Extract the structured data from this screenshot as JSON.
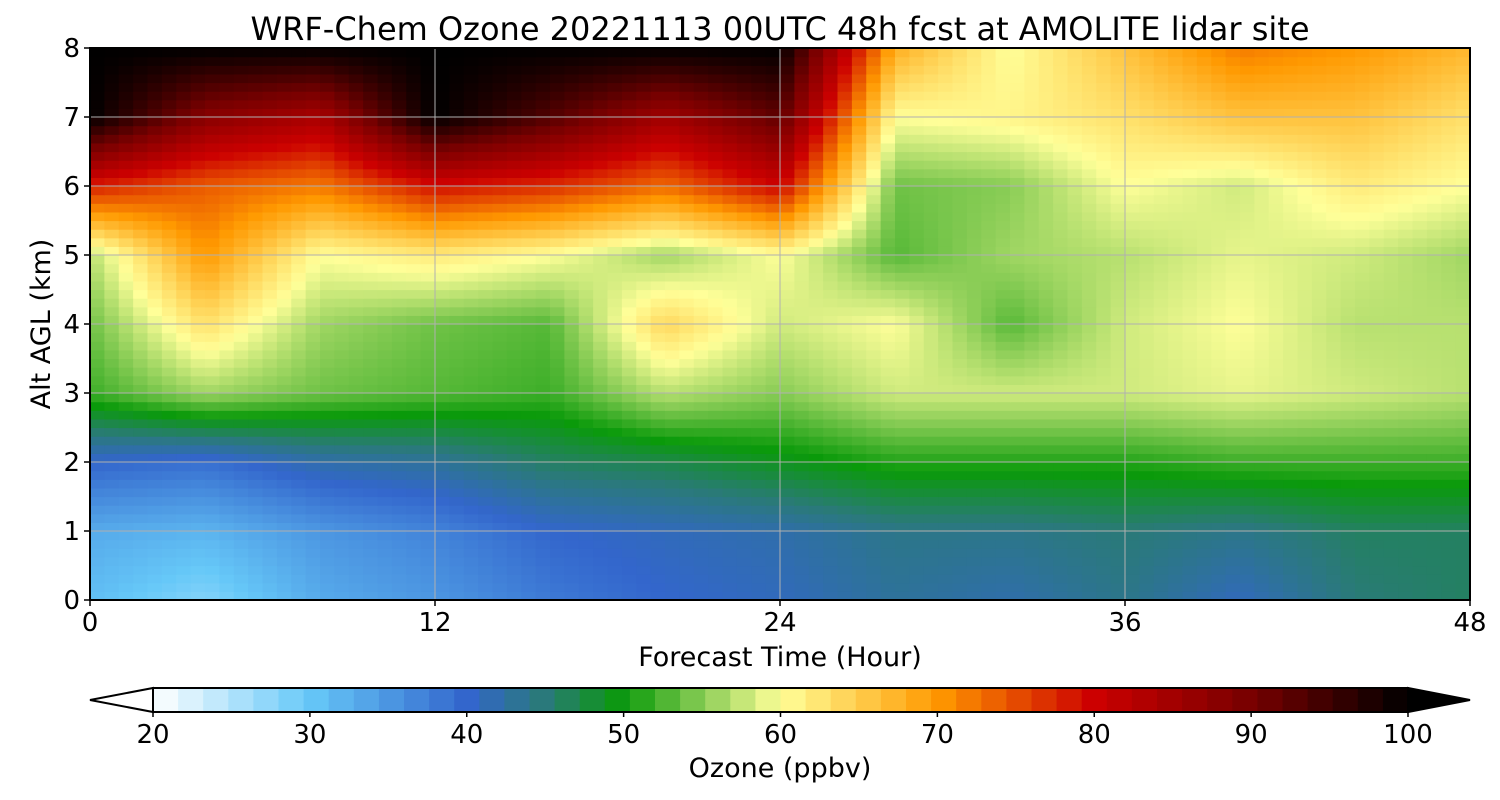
{
  "chart_data": {
    "type": "heatmap",
    "title": "WRF-Chem Ozone  20221113 00UTC 48h fcst at AMOLITE lidar site",
    "xlabel": "Forecast Time (Hour)",
    "ylabel": "Alt AGL (km)",
    "xlim": [
      0,
      48
    ],
    "ylim": [
      0,
      8
    ],
    "x_ticks": [
      "0",
      "12",
      "24",
      "36",
      "48"
    ],
    "y_ticks": [
      "0",
      "1",
      "2",
      "3",
      "4",
      "5",
      "6",
      "7",
      "8"
    ],
    "grid": true,
    "units": "ppbv",
    "z_label": "Ozone  (ppbv)",
    "colorbar": {
      "label": "Ozone  (ppbv)",
      "range": [
        20,
        100
      ],
      "ticks": [
        "20",
        "30",
        "40",
        "50",
        "60",
        "70",
        "80",
        "90",
        "100"
      ],
      "extend": "both",
      "stops": [
        {
          "v": 20,
          "c": "#ffffff"
        },
        {
          "v": 30,
          "c": "#66c8f8"
        },
        {
          "v": 40,
          "c": "#3366cc"
        },
        {
          "v": 45,
          "c": "#2a7a78"
        },
        {
          "v": 50,
          "c": "#0a9a0a"
        },
        {
          "v": 55,
          "c": "#88cc55"
        },
        {
          "v": 60,
          "c": "#ffff99"
        },
        {
          "v": 70,
          "c": "#ff9900"
        },
        {
          "v": 80,
          "c": "#cc0000"
        },
        {
          "v": 90,
          "c": "#770000"
        },
        {
          "v": 100,
          "c": "#000000"
        }
      ]
    },
    "x": [
      0,
      4,
      8,
      12,
      16,
      20,
      24,
      28,
      32,
      36,
      40,
      44,
      48
    ],
    "y": [
      0,
      1,
      2,
      3,
      4,
      5,
      6,
      7,
      8
    ],
    "z": [
      [
        31,
        28,
        33,
        35,
        38,
        40,
        41,
        43,
        42,
        44,
        41,
        45,
        46
      ],
      [
        33,
        32,
        35,
        37,
        40,
        41,
        42,
        44,
        44,
        45,
        44,
        46,
        46
      ],
      [
        40,
        39,
        42,
        43,
        46,
        47,
        49,
        51,
        51,
        51,
        52,
        52,
        52
      ],
      [
        52,
        56,
        54,
        53,
        52,
        57,
        55,
        58,
        58,
        58,
        59,
        58,
        57
      ],
      [
        54,
        63,
        56,
        54,
        53,
        64,
        58,
        60,
        53,
        58,
        60,
        57,
        57
      ],
      [
        57,
        70,
        60,
        62,
        60,
        56,
        60,
        53,
        56,
        57,
        59,
        58,
        56
      ],
      [
        78,
        74,
        72,
        79,
        77,
        73,
        80,
        54,
        55,
        60,
        58,
        62,
        60
      ],
      [
        100,
        88,
        84,
        100,
        93,
        85,
        92,
        60,
        61,
        63,
        66,
        66,
        63
      ],
      [
        100,
        100,
        100,
        100,
        100,
        100,
        100,
        68,
        60,
        66,
        72,
        70,
        67
      ]
    ]
  }
}
